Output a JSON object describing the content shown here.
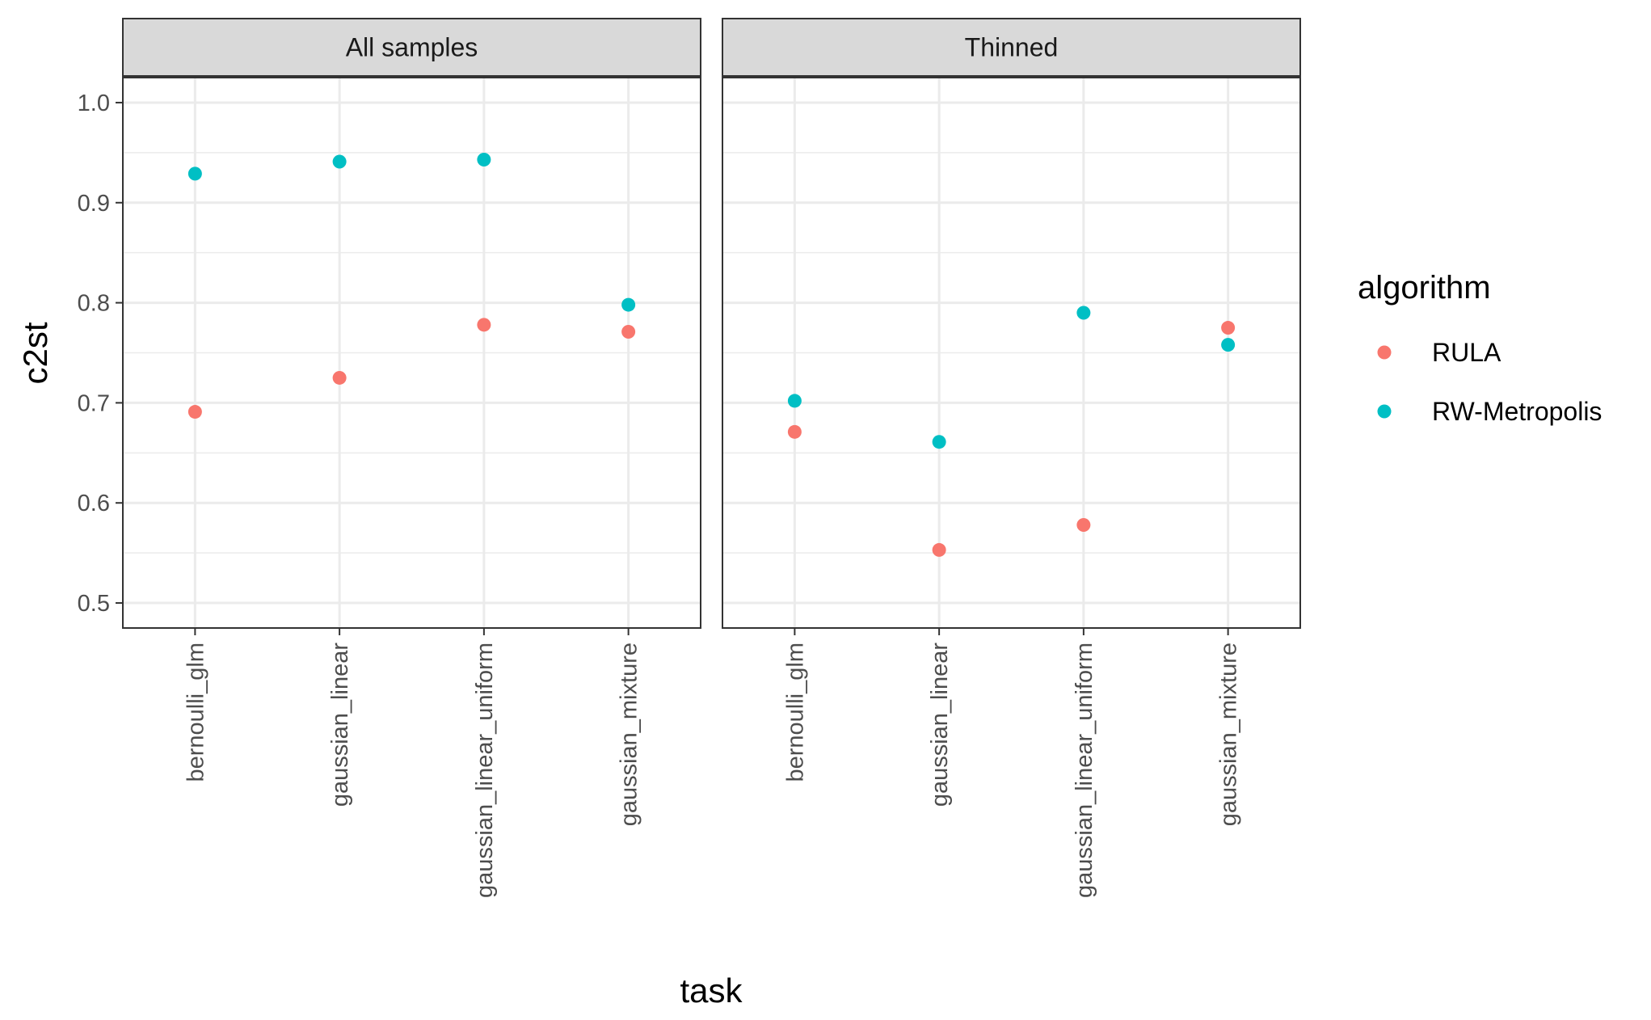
{
  "chart_data": {
    "type": "scatter",
    "panels": [
      "All samples",
      "Thinned"
    ],
    "categories": [
      "bernoulli_glm",
      "gaussian_linear",
      "gaussian_linear_uniform",
      "gaussian_mixture"
    ],
    "series": [
      {
        "name": "RULA",
        "color": "#F8766D",
        "values": {
          "All samples": [
            0.691,
            0.725,
            0.778,
            0.771
          ],
          "Thinned": [
            0.671,
            0.553,
            0.578,
            0.775
          ]
        }
      },
      {
        "name": "RW-Metropolis",
        "color": "#00BFC4",
        "values": {
          "All samples": [
            0.929,
            0.941,
            0.943,
            0.798
          ],
          "Thinned": [
            0.702,
            0.661,
            0.79,
            0.758
          ]
        }
      }
    ],
    "xlabel": "task",
    "ylabel": "c2st",
    "ylim": [
      0.475,
      1.025
    ],
    "yticks": [
      "0.5",
      "0.6",
      "0.7",
      "0.8",
      "0.9",
      "1.0"
    ],
    "grid": true,
    "legend": {
      "title": "algorithm",
      "position": "right"
    }
  }
}
